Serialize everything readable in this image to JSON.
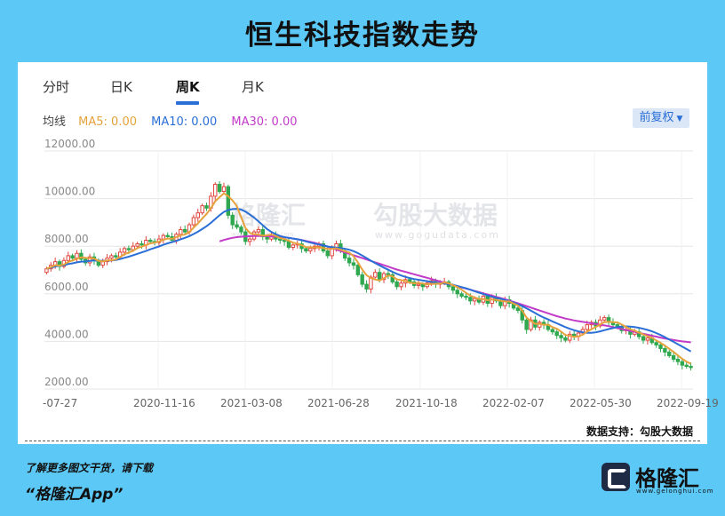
{
  "page": {
    "title": "恒生科技指数走势",
    "background": "#5bc8f5"
  },
  "tabs": [
    {
      "label": "分时",
      "active": false
    },
    {
      "label": "日K",
      "active": false
    },
    {
      "label": "周K",
      "active": true
    },
    {
      "label": "月K",
      "active": false
    }
  ],
  "ma_legend": {
    "label": "均线",
    "items": [
      {
        "text": "MA5: 0.00",
        "color": "#e6a23c"
      },
      {
        "text": "MA10: 0.00",
        "color": "#2a6fd6"
      },
      {
        "text": "MA30: 0.00",
        "color": "#c23ac8"
      }
    ]
  },
  "adjust_button": {
    "label": "前复权",
    "icon": "caret-down-icon"
  },
  "watermark": {
    "brand": "格隆汇",
    "brand_domain": "www.gelonghui.com",
    "data": "勾股大数据",
    "data_domain": "www.gogudata.com"
  },
  "chart_data": {
    "type": "candlestick",
    "title": "恒生科技指数走势",
    "xlabel": "",
    "ylabel": "",
    "ylim": [
      2000,
      12000
    ],
    "yticks": [
      "12000.00",
      "10000.00",
      "8000.00",
      "6000.00",
      "4000.00",
      "2000.00"
    ],
    "xticks": [
      "-07-27",
      "2020-11-16",
      "2021-03-08",
      "2021-06-28",
      "2021-10-18",
      "2022-02-07",
      "2022-05-30",
      "2022-09-19"
    ],
    "grid": true,
    "up_color": "#e0463f",
    "down_color": "#2fa84f",
    "close": [
      7050,
      7200,
      7350,
      7150,
      7400,
      7600,
      7500,
      7700,
      7450,
      7300,
      7550,
      7400,
      7200,
      7350,
      7500,
      7600,
      7550,
      7750,
      7900,
      7850,
      8000,
      8100,
      8050,
      8250,
      8200,
      8150,
      8300,
      8450,
      8400,
      8250,
      8500,
      8700,
      8600,
      8900,
      9200,
      9400,
      9700,
      9600,
      10100,
      10600,
      10300,
      10500,
      9300,
      8900,
      8800,
      8600,
      8200,
      8300,
      8600,
      8700,
      8400,
      8300,
      8450,
      8300,
      8250,
      8200,
      7950,
      8050,
      8100,
      7900,
      7800,
      7900,
      8000,
      8100,
      7800,
      7600,
      7950,
      8100,
      7800,
      7500,
      7300,
      7200,
      6800,
      6400,
      6200,
      6700,
      6900,
      6600,
      6850,
      6800,
      6500,
      6300,
      6450,
      6600,
      6500,
      6350,
      6400,
      6300,
      6450,
      6550,
      6400,
      6450,
      6500,
      6300,
      6150,
      6000,
      5900,
      5850,
      5700,
      5800,
      5650,
      5900,
      5600,
      5850,
      5700,
      5500,
      5750,
      5600,
      5400,
      5300,
      4900,
      4500,
      4900,
      4600,
      4800,
      4700,
      4500,
      4400,
      4250,
      4150,
      4050,
      4300,
      4200,
      4350,
      4500,
      4700,
      4800,
      4650,
      4900,
      5000,
      4800,
      4700,
      4600,
      4450,
      4500,
      4300,
      4400,
      4200,
      4050,
      4150,
      3950,
      3850,
      3700,
      3550,
      3400,
      3250,
      3150,
      3000,
      2950,
      2900
    ],
    "ma5": [
      7050,
      7125,
      7200,
      7188,
      7230,
      7340,
      7400,
      7470,
      7530,
      7510,
      7500,
      7480,
      7380,
      7360,
      7400,
      7410,
      7440,
      7550,
      7660,
      7730,
      7810,
      7920,
      7980,
      8040,
      8120,
      8150,
      8190,
      8270,
      8320,
      8310,
      8380,
      8460,
      8490,
      8590,
      8780,
      8960,
      9160,
      9360,
      9600,
      9880,
      10060,
      10220,
      10100,
      9920,
      9680,
      9220,
      8760,
      8560,
      8500,
      8480,
      8440,
      8460,
      8490,
      8430,
      8340,
      8300,
      8230,
      8150,
      8110,
      8040,
      7960,
      7950,
      7950,
      7940,
      7920,
      7880,
      7890,
      7910,
      7850,
      7790,
      7730,
      7580,
      7320,
      7020,
      6780,
      6660,
      6600,
      6560,
      6650,
      6770,
      6730,
      6610,
      6580,
      6530,
      6470,
      6440,
      6460,
      6430,
      6400,
      6410,
      6420,
      6430,
      6470,
      6440,
      6360,
      6280,
      6170,
      6040,
      5920,
      5850,
      5780,
      5780,
      5730,
      5760,
      5740,
      5710,
      5680,
      5680,
      5590,
      5510,
      5290,
      5000,
      4860,
      4740,
      4740,
      4700,
      4700,
      4600,
      4530,
      4410,
      4270,
      4230,
      4190,
      4210,
      4280,
      4410,
      4510,
      4600,
      4710,
      4810,
      4830,
      4810,
      4800,
      4710,
      4610,
      4510,
      4450,
      4370,
      4290,
      4220,
      4150,
      4040,
      3940,
      3820,
      3690,
      3560,
      3410,
      3270,
      3150,
      3060
    ],
    "ma10": [
      7050,
      7100,
      7150,
      7180,
      7200,
      7250,
      7280,
      7320,
      7350,
      7360,
      7380,
      7400,
      7390,
      7380,
      7390,
      7400,
      7420,
      7460,
      7510,
      7560,
      7620,
      7680,
      7740,
      7800,
      7870,
      7930,
      7990,
      8060,
      8120,
      8170,
      8220,
      8290,
      8350,
      8420,
      8510,
      8610,
      8720,
      8840,
      8980,
      9140,
      9300,
      9440,
      9520,
      9560,
      9570,
      9540,
      9450,
      9330,
      9200,
      9040,
      8880,
      8720,
      8600,
      8500,
      8430,
      8380,
      8350,
      8320,
      8290,
      8250,
      8200,
      8150,
      8110,
      8070,
      8030,
      7990,
      7960,
      7940,
      7920,
      7890,
      7850,
      7790,
      7710,
      7610,
      7500,
      7390,
      7290,
      7190,
      7100,
      7010,
      6920,
      6840,
      6770,
      6710,
      6660,
      6620,
      6590,
      6560,
      6530,
      6500,
      6470,
      6450,
      6430,
      6400,
      6370,
      6330,
      6280,
      6230,
      6170,
      6110,
      6050,
      5990,
      5930,
      5880,
      5830,
      5790,
      5740,
      5690,
      5630,
      5560,
      5480,
      5390,
      5290,
      5190,
      5090,
      5000,
      4920,
      4840,
      4760,
      4680,
      4600,
      4530,
      4470,
      4420,
      4380,
      4360,
      4360,
      4380,
      4420,
      4470,
      4520,
      4560,
      4600,
      4620,
      4630,
      4620,
      4600,
      4570,
      4530,
      4480,
      4420,
      4350,
      4270,
      4180,
      4080,
      3980,
      3880,
      3780,
      3680,
      3580
    ],
    "ma30_start_index": 40,
    "ma30": [
      8200,
      8260,
      8310,
      8350,
      8380,
      8400,
      8410,
      8420,
      8430,
      8430,
      8430,
      8420,
      8410,
      8400,
      8390,
      8370,
      8350,
      8320,
      8290,
      8260,
      8220,
      8180,
      8140,
      8090,
      8040,
      7980,
      7920,
      7860,
      7800,
      7740,
      7680,
      7620,
      7560,
      7500,
      7440,
      7380,
      7320,
      7260,
      7200,
      7140,
      7080,
      7020,
      6970,
      6920,
      6870,
      6820,
      6770,
      6720,
      6670,
      6620,
      6570,
      6520,
      6470,
      6420,
      6370,
      6320,
      6270,
      6220,
      6170,
      6120,
      6070,
      6020,
      5970,
      5920,
      5870,
      5820,
      5770,
      5720,
      5660,
      5600,
      5540,
      5480,
      5420,
      5360,
      5300,
      5240,
      5180,
      5120,
      5060,
      5010,
      4960,
      4920,
      4880,
      4850,
      4820,
      4790,
      4760,
      4730,
      4700,
      4670,
      4640,
      4600,
      4560,
      4520,
      4480,
      4440,
      4400,
      4360,
      4320,
      4280,
      4240,
      4200,
      4160,
      4120,
      4090,
      4060,
      4030,
      4000,
      3980,
      3960
    ]
  },
  "footer": {
    "support": "数据支持：勾股大数据",
    "download_hint": "了解更多图文干货，请下载",
    "app_name": "“格隆汇App”",
    "logo_brand": "格隆汇",
    "logo_domain": "www.gelonghui.com"
  }
}
